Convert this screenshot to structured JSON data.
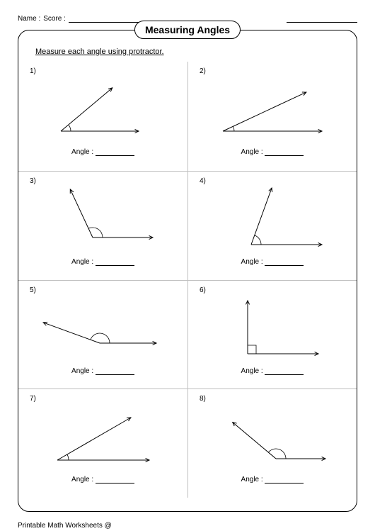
{
  "header": {
    "name_label": "Name :",
    "score_label": "Score :"
  },
  "title": "Measuring Angles",
  "instruction": "Measure each angle using protractor.",
  "answer_label": "Angle :",
  "footer": "Printable Math Worksheets @",
  "colors": {
    "text": "#000000",
    "background": "#ffffff",
    "grid_line": "#bfbfbf"
  },
  "problems": [
    {
      "num": "1)",
      "vertex": [
        40,
        80
      ],
      "angle1": 0,
      "angle2": 40,
      "len1": 110,
      "len2": 95,
      "arc_r": 14,
      "arc_type": "arc"
    },
    {
      "num": "2)",
      "vertex": [
        30,
        80
      ],
      "angle1": 0,
      "angle2": 25,
      "len1": 140,
      "len2": 130,
      "arc_r": 16,
      "arc_type": "arc"
    },
    {
      "num": "3)",
      "vertex": [
        85,
        75
      ],
      "angle1": 0,
      "angle2": 115,
      "len1": 85,
      "len2": 75,
      "arc_r": 14,
      "arc_type": "arc"
    },
    {
      "num": "4)",
      "vertex": [
        70,
        85
      ],
      "angle1": 0,
      "angle2": 70,
      "len1": 100,
      "len2": 85,
      "arc_r": 14,
      "arc_type": "arc"
    },
    {
      "num": "5)",
      "vertex": [
        95,
        70
      ],
      "angle1": 0,
      "angle2": 160,
      "len1": 80,
      "len2": 85,
      "arc_r": 14,
      "arc_type": "arc"
    },
    {
      "num": "6)",
      "vertex": [
        65,
        85
      ],
      "angle1": 0,
      "angle2": 90,
      "len1": 100,
      "len2": 75,
      "arc_r": 12,
      "arc_type": "square"
    },
    {
      "num": "7)",
      "vertex": [
        35,
        82
      ],
      "angle1": 0,
      "angle2": 30,
      "len1": 130,
      "len2": 120,
      "arc_r": 16,
      "arc_type": "arc"
    },
    {
      "num": "8)",
      "vertex": [
        105,
        80
      ],
      "angle1": 0,
      "angle2": 140,
      "len1": 70,
      "len2": 80,
      "arc_r": 14,
      "arc_type": "arc"
    }
  ]
}
